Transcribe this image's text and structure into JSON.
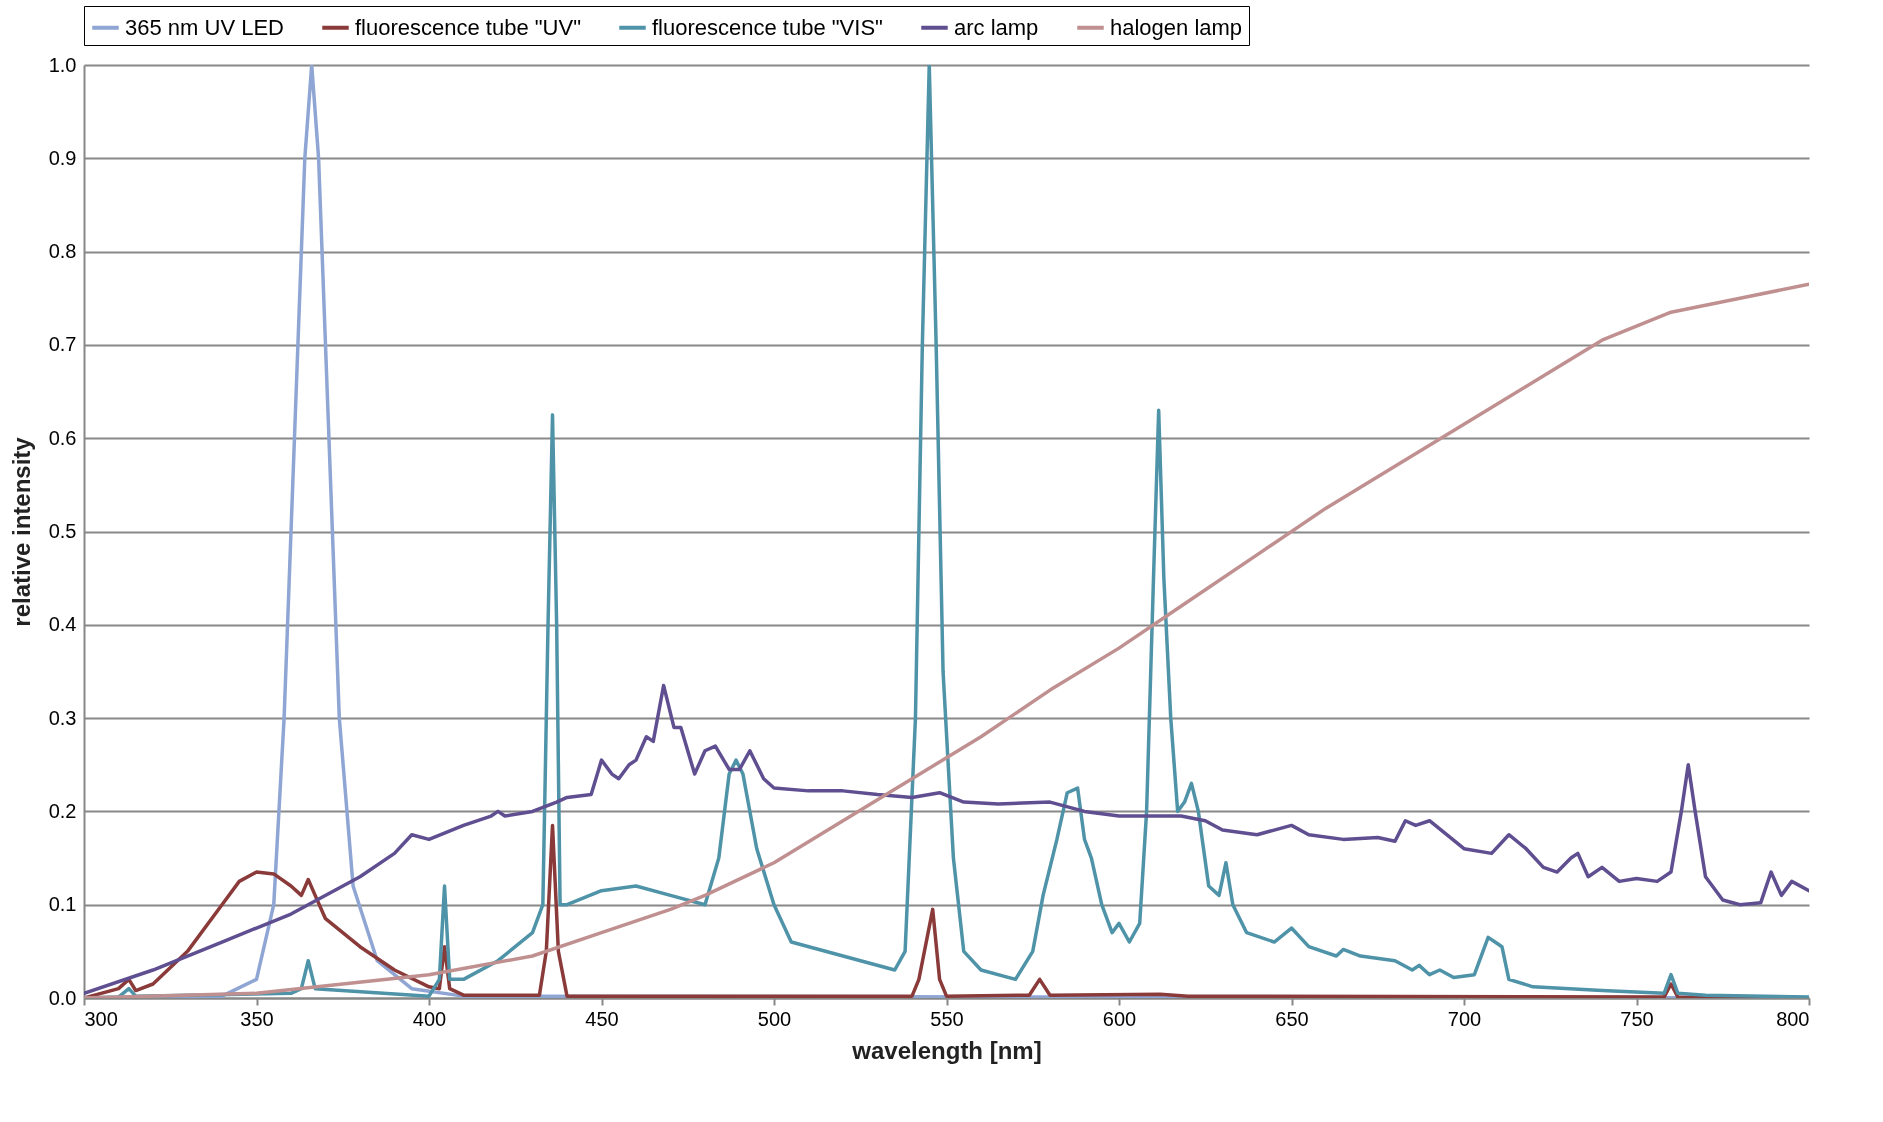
{
  "chart_data": {
    "type": "line",
    "xlabel": "wavelength [nm]",
    "ylabel": "relative intensity",
    "legend": "top",
    "grid": "y",
    "line_style": "solid",
    "xlim": [
      300,
      800
    ],
    "ylim": [
      0,
      1
    ],
    "xticks": [
      300,
      350,
      400,
      450,
      500,
      550,
      600,
      650,
      700,
      750,
      800
    ],
    "yticks": [
      {
        "value": 0,
        "label": "0.0"
      },
      0.1,
      0.2,
      0.3,
      0.4,
      0.5,
      0.6,
      0.7,
      0.8,
      0.9,
      {
        "value": 1,
        "label": "1.0"
      }
    ],
    "series": [
      {
        "name": "365 nm UV LED",
        "color": "#8fa5d3",
        "x": [
          300,
          340,
          350,
          355,
          358,
          361,
          364,
          366,
          368,
          371,
          374,
          378,
          385,
          395,
          410,
          800
        ],
        "values": [
          0,
          0.002,
          0.02,
          0.1,
          0.3,
          0.6,
          0.9,
          1.0,
          0.9,
          0.6,
          0.3,
          0.12,
          0.04,
          0.01,
          0.002,
          0
        ]
      },
      {
        "name": "fluorescence tube \"UV\"",
        "color": "#8b3a3a",
        "x": [
          300,
          310,
          313,
          315,
          320,
          330,
          340,
          345,
          350,
          355,
          360,
          363,
          365,
          367,
          370,
          380,
          390,
          400,
          403,
          404.5,
          406,
          410,
          432,
          434,
          435.8,
          437.5,
          440,
          540,
          542,
          546,
          548,
          550,
          574,
          577,
          580,
          612,
          620,
          758,
          760,
          762,
          800
        ],
        "values": [
          0,
          0.01,
          0.02,
          0.008,
          0.015,
          0.05,
          0.1,
          0.125,
          0.135,
          0.133,
          0.12,
          0.11,
          0.127,
          0.11,
          0.085,
          0.055,
          0.03,
          0.012,
          0.01,
          0.055,
          0.01,
          0.003,
          0.003,
          0.05,
          0.185,
          0.05,
          0.002,
          0.002,
          0.02,
          0.095,
          0.02,
          0.002,
          0.003,
          0.02,
          0.003,
          0.004,
          0.002,
          0.001,
          0.015,
          0.001,
          0
        ]
      },
      {
        "name": "fluorescence tube \"VIS\"",
        "color": "#4f93a8",
        "x": [
          300,
          310,
          313,
          315,
          360,
          363,
          365,
          367,
          400,
          403,
          404.5,
          406,
          410,
          420,
          430,
          433,
          434.5,
          435.8,
          437,
          438,
          440,
          450,
          460,
          470,
          480,
          484,
          487,
          489,
          491,
          495,
          500,
          505,
          520,
          535,
          538,
          541,
          543,
          545,
          547,
          549,
          552,
          555,
          560,
          570,
          575,
          578,
          582,
          585,
          588,
          590,
          592,
          595,
          598,
          600,
          603,
          606,
          608,
          610,
          611.5,
          613,
          615,
          617,
          619,
          621,
          623,
          626,
          629,
          631,
          633,
          637,
          645,
          650,
          655,
          663,
          665,
          670,
          680,
          685,
          687,
          690,
          693,
          697,
          703,
          707,
          709,
          711,
          713,
          720,
          740,
          758,
          760,
          762,
          770,
          800
        ],
        "values": [
          0,
          0.001,
          0.01,
          0.002,
          0.005,
          0.01,
          0.04,
          0.01,
          0.002,
          0.02,
          0.12,
          0.02,
          0.02,
          0.04,
          0.07,
          0.1,
          0.4,
          0.625,
          0.4,
          0.1,
          0.1,
          0.115,
          0.12,
          0.11,
          0.1,
          0.15,
          0.24,
          0.255,
          0.24,
          0.16,
          0.1,
          0.06,
          0.045,
          0.03,
          0.05,
          0.3,
          0.7,
          1.0,
          0.7,
          0.35,
          0.15,
          0.05,
          0.03,
          0.02,
          0.05,
          0.11,
          0.17,
          0.22,
          0.225,
          0.17,
          0.15,
          0.1,
          0.07,
          0.08,
          0.06,
          0.08,
          0.2,
          0.45,
          0.63,
          0.45,
          0.3,
          0.2,
          0.21,
          0.23,
          0.2,
          0.12,
          0.11,
          0.145,
          0.1,
          0.07,
          0.06,
          0.075,
          0.055,
          0.045,
          0.052,
          0.045,
          0.04,
          0.03,
          0.035,
          0.025,
          0.03,
          0.022,
          0.025,
          0.065,
          0.06,
          0.055,
          0.02,
          0.012,
          0.008,
          0.005,
          0.025,
          0.005,
          0.003,
          0.001
        ]
      },
      {
        "name": "arc lamp",
        "color": "#5f4f91",
        "x": [
          300,
          320,
          340,
          360,
          380,
          390,
          395,
          400,
          410,
          418,
          420,
          422,
          430,
          437,
          440,
          447,
          450,
          453,
          455,
          458,
          460,
          463,
          465,
          468,
          471,
          473,
          477,
          480,
          483,
          487,
          490,
          493,
          497,
          500,
          510,
          520,
          530,
          540,
          548,
          555,
          565,
          580,
          590,
          600,
          610,
          618,
          625,
          630,
          640,
          650,
          655,
          665,
          675,
          680,
          683,
          686,
          690,
          695,
          700,
          708,
          713,
          718,
          723,
          727,
          731,
          733,
          736,
          740,
          745,
          750,
          756,
          760,
          763,
          765,
          767,
          770,
          775,
          780,
          786,
          789,
          792,
          795,
          800
        ],
        "values": [
          0.005,
          0.03,
          0.06,
          0.09,
          0.13,
          0.155,
          0.175,
          0.17,
          0.185,
          0.195,
          0.2,
          0.195,
          0.2,
          0.21,
          0.215,
          0.218,
          0.255,
          0.24,
          0.235,
          0.25,
          0.255,
          0.28,
          0.275,
          0.335,
          0.29,
          0.29,
          0.24,
          0.265,
          0.27,
          0.245,
          0.245,
          0.265,
          0.235,
          0.225,
          0.222,
          0.222,
          0.218,
          0.215,
          0.22,
          0.21,
          0.208,
          0.21,
          0.2,
          0.195,
          0.195,
          0.195,
          0.19,
          0.18,
          0.175,
          0.185,
          0.175,
          0.17,
          0.172,
          0.168,
          0.19,
          0.185,
          0.19,
          0.175,
          0.16,
          0.155,
          0.175,
          0.16,
          0.14,
          0.135,
          0.15,
          0.155,
          0.13,
          0.14,
          0.125,
          0.128,
          0.125,
          0.135,
          0.2,
          0.25,
          0.2,
          0.13,
          0.105,
          0.1,
          0.102,
          0.135,
          0.11,
          0.125,
          0.115
        ]
      },
      {
        "name": "halogen lamp",
        "color": "#c09090",
        "x": [
          300,
          350,
          400,
          430,
          450,
          470,
          480,
          500,
          520,
          540,
          560,
          580,
          600,
          620,
          640,
          660,
          680,
          700,
          720,
          740,
          760,
          780,
          800
        ],
        "values": [
          0,
          0.005,
          0.025,
          0.045,
          0.07,
          0.095,
          0.11,
          0.145,
          0.19,
          0.235,
          0.28,
          0.33,
          0.375,
          0.425,
          0.475,
          0.525,
          0.57,
          0.615,
          0.66,
          0.705,
          0.735,
          0.75,
          0.765
        ]
      }
    ]
  }
}
